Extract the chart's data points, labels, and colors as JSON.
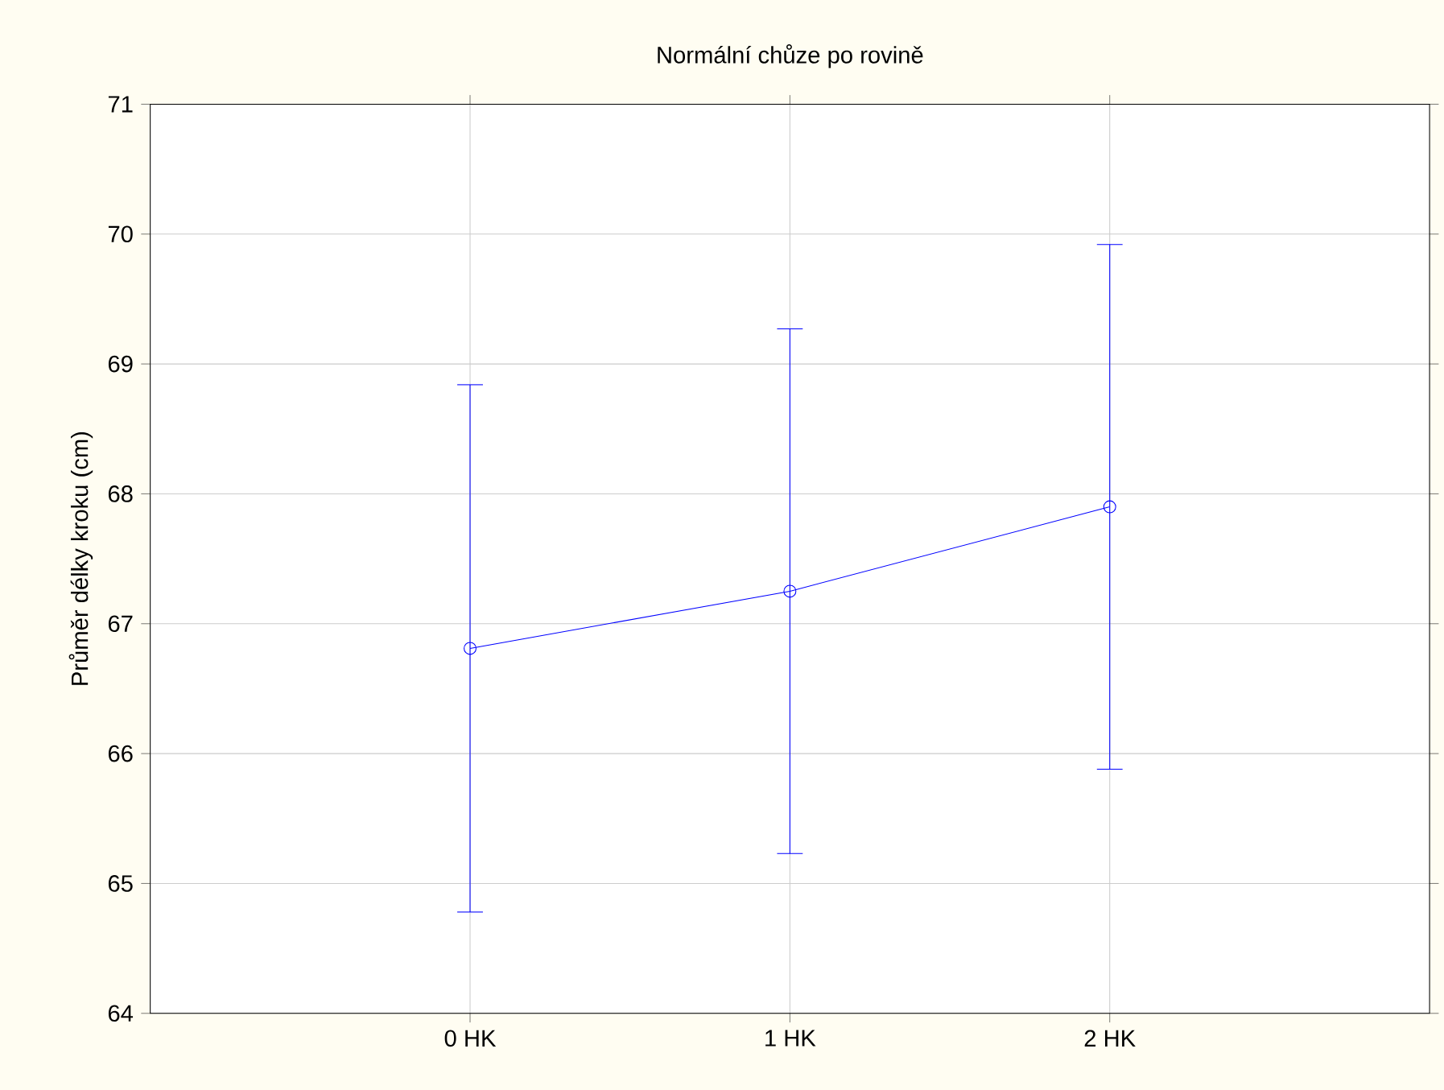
{
  "chart_data": {
    "type": "line",
    "title": "Normální chůze po rovině",
    "ylabel": "Průměr délky kroku (cm)",
    "categories": [
      "0 HK",
      "1 HK",
      "2 HK"
    ],
    "values": [
      66.81,
      67.25,
      67.9
    ],
    "errors": [
      2.03,
      2.02,
      2.02
    ],
    "color": "#0000ff",
    "marker": "circle",
    "line_style": "solid",
    "ylim": [
      64,
      71
    ],
    "yticks": [
      64,
      65,
      66,
      67,
      68,
      69,
      70,
      71
    ],
    "grid": true
  }
}
